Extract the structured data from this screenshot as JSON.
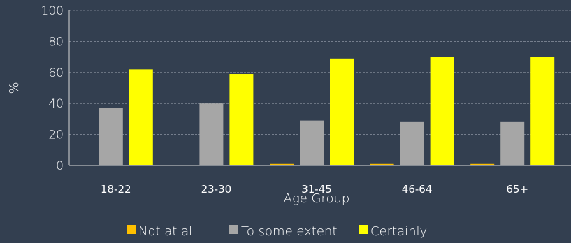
{
  "chart_data": {
    "type": "bar",
    "xlabel": "Age Group",
    "ylabel": "%",
    "ylim": [
      0,
      100
    ],
    "yticks": [
      0,
      20,
      40,
      60,
      80,
      100
    ],
    "categories": [
      "18-22",
      "23-30",
      "31-45",
      "46-64",
      "65+"
    ],
    "series": [
      {
        "name": "Not at all",
        "color": "#ffc000",
        "values": [
          0,
          0,
          1,
          1,
          1
        ]
      },
      {
        "name": "To some extent",
        "color": "#a6a6a6",
        "values": [
          37,
          40,
          29,
          28,
          28
        ]
      },
      {
        "name": "Certainly",
        "color": "#ffff00",
        "values": [
          62,
          59,
          69,
          70,
          70
        ]
      }
    ],
    "grid": true,
    "legend": "bottom"
  }
}
